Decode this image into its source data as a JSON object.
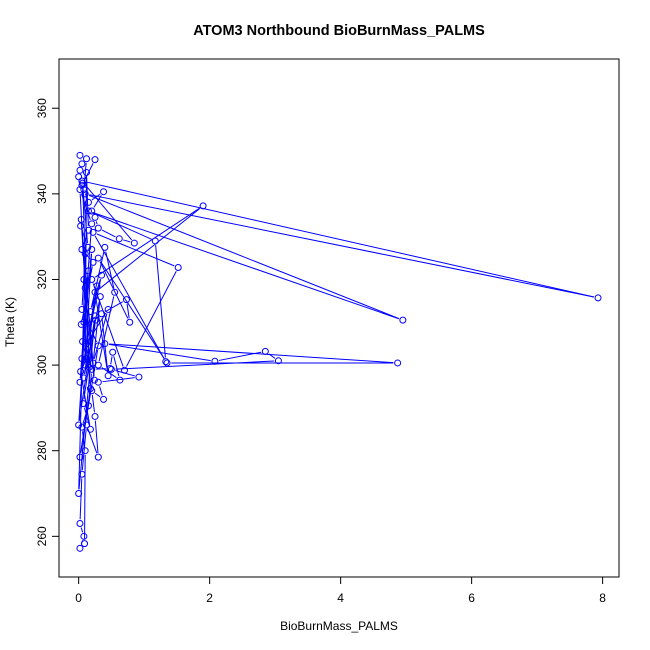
{
  "chart_data": {
    "type": "line",
    "title": "ATOM3 Northbound BioBurnMass_PALMS",
    "xlabel": "BioBurnMass_PALMS",
    "ylabel": "Theta (K)",
    "xlim": [
      -0.3,
      8.25
    ],
    "ylim": [
      250.5,
      371.5
    ],
    "x_ticks": [
      0,
      2,
      4,
      6,
      8
    ],
    "y_ticks": [
      260,
      280,
      300,
      320,
      340,
      360
    ],
    "grid": false,
    "legend": "none",
    "series_color": "#0000ff",
    "series": [
      {
        "points": [
          [
            0.02,
            349.0
          ],
          [
            0.05,
            347.0
          ],
          [
            0.02,
            345.5
          ],
          [
            0.0,
            344.0
          ],
          [
            0.05,
            342.0
          ],
          [
            0.25,
            348.0
          ],
          [
            0.12,
            348.2
          ],
          [
            0.08,
            341.0
          ],
          [
            0.15,
            338.0
          ],
          [
            0.38,
            340.5
          ],
          [
            0.2,
            336.0
          ],
          [
            0.25,
            334.5
          ],
          [
            0.3,
            332.0
          ],
          [
            0.62,
            329.5
          ],
          [
            0.85,
            328.5
          ],
          [
            0.05,
            343.0
          ],
          [
            7.93,
            315.7
          ],
          [
            0.1,
            340.0
          ],
          [
            4.95,
            310.5
          ],
          [
            0.15,
            336.0
          ],
          [
            1.17,
            329.0
          ],
          [
            1.33,
            300.8
          ],
          [
            0.22,
            331.0
          ],
          [
            1.52,
            322.8
          ],
          [
            0.7,
            298.8
          ],
          [
            0.2,
            320.0
          ],
          [
            1.9,
            337.2
          ],
          [
            0.25,
            317.0
          ],
          [
            0.45,
            297.5
          ],
          [
            0.35,
            312.0
          ],
          [
            0.73,
            315.3
          ],
          [
            0.78,
            310.0
          ],
          [
            0.3,
            325.0
          ],
          [
            1.35,
            300.5
          ],
          [
            4.87,
            300.5
          ],
          [
            0.4,
            305.0
          ],
          [
            2.08,
            300.9
          ],
          [
            2.85,
            303.2
          ],
          [
            3.05,
            301.0
          ],
          [
            0.5,
            299.0
          ],
          [
            0.92,
            297.2
          ],
          [
            0.3,
            296.0
          ],
          [
            0.38,
            292.0
          ],
          [
            0.2,
            294.0
          ],
          [
            0.25,
            288.0
          ],
          [
            0.3,
            278.5
          ],
          [
            0.12,
            286.0
          ],
          [
            0.05,
            274.5
          ],
          [
            0.02,
            263.0
          ],
          [
            0.08,
            260.0
          ],
          [
            0.02,
            257.2
          ],
          [
            0.09,
            258.3
          ],
          [
            0.1,
            280.0
          ],
          [
            0.05,
            285.5
          ],
          [
            0.15,
            290.5
          ],
          [
            0.2,
            299.0
          ],
          [
            0.48,
            299.2
          ],
          [
            0.52,
            303.0
          ],
          [
            0.63,
            296.5
          ],
          [
            0.3,
            300.0
          ],
          [
            0.55,
            317.0
          ],
          [
            0.4,
            327.5
          ],
          [
            0.18,
            312.5
          ],
          [
            0.35,
            321.0
          ],
          [
            0.12,
            305.0
          ],
          [
            0.45,
            313.0
          ],
          [
            0.22,
            300.5
          ],
          [
            0.33,
            316.0
          ],
          [
            0.08,
            297.0
          ],
          [
            0.28,
            318.5
          ],
          [
            0.02,
            296.0
          ],
          [
            0.15,
            322.0
          ],
          [
            0.0,
            286.0
          ],
          [
            0.25,
            311.5
          ],
          [
            0.0,
            270.0
          ],
          [
            0.1,
            326.0
          ],
          [
            0.05,
            313.0
          ],
          [
            0.3,
            304.5
          ],
          [
            0.02,
            278.5
          ],
          [
            0.18,
            294.5
          ],
          [
            0.08,
            310.0
          ],
          [
            0.05,
            301.5
          ],
          [
            0.2,
            327.0
          ],
          [
            0.1,
            300.0
          ],
          [
            0.12,
            345.0
          ],
          [
            0.15,
            331.5
          ],
          [
            0.05,
            327.0
          ],
          [
            0.22,
            324.0
          ],
          [
            0.04,
            309.5
          ],
          [
            0.26,
            310.5
          ],
          [
            0.07,
            291.0
          ],
          [
            0.18,
            285.0
          ],
          [
            0.03,
            298.5
          ],
          [
            0.12,
            301.5
          ],
          [
            0.06,
            305.5
          ],
          [
            0.2,
            333.0
          ],
          [
            0.02,
            341.0
          ],
          [
            0.1,
            318.0
          ],
          [
            0.04,
            334.0
          ],
          [
            0.24,
            296.5
          ],
          [
            0.08,
            320.0
          ],
          [
            0.16,
            299.5
          ],
          [
            0.06,
            342.5
          ],
          [
            0.14,
            327.5
          ],
          [
            0.03,
            332.5
          ]
        ]
      }
    ]
  }
}
